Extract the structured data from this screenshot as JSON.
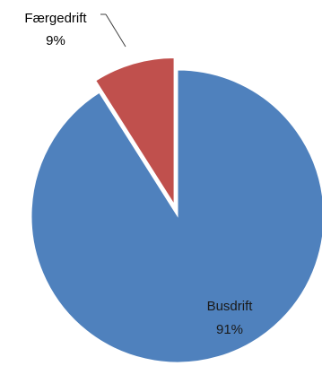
{
  "chart_data": {
    "type": "pie",
    "title": "",
    "slices": [
      {
        "label": "Busdrift",
        "value": 91,
        "value_label": "91%",
        "color": "#4f81bd",
        "exploded": false
      },
      {
        "label": "Færgedrift",
        "value": 9,
        "value_label": "9%",
        "color": "#c0504d",
        "exploded": true
      }
    ],
    "legend": "none",
    "start_angle": "12 o'clock, clockwise"
  }
}
